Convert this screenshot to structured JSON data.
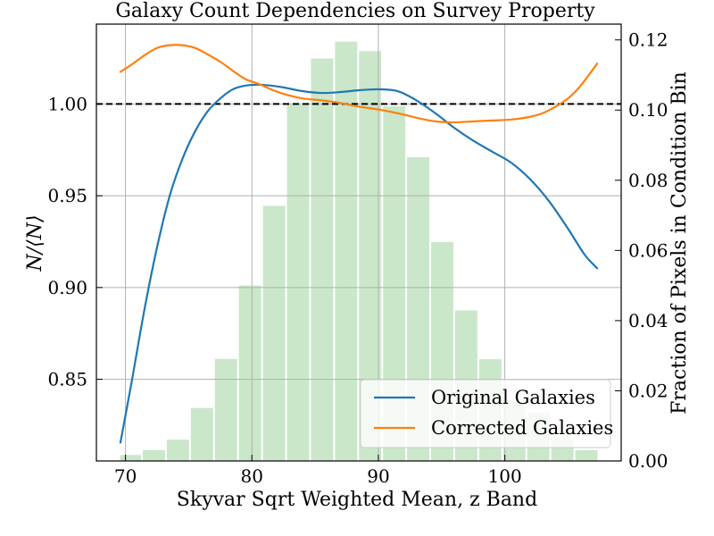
{
  "chart_data": {
    "type": "line",
    "title": "Galaxy Count Dependencies on Survey Property",
    "xlabel": "Skyvar Sqrt Weighted Mean, z Band",
    "ylabel": "N/⟨N⟩",
    "y2label": "Fraction of Pixels in Condition Bin",
    "xlim": [
      67.7,
      109.2
    ],
    "ylim": [
      0.8055,
      1.0435
    ],
    "y2lim": [
      0.0,
      0.1245
    ],
    "xticks": [
      "70",
      "80",
      "90",
      "100"
    ],
    "xtick_values": [
      70,
      80,
      90,
      100
    ],
    "yticks": [
      "0.85",
      "0.90",
      "0.95",
      "1.00"
    ],
    "ytick_values": [
      0.85,
      0.9,
      0.95,
      1.0
    ],
    "y2ticks": [
      "0.00",
      "0.02",
      "0.04",
      "0.06",
      "0.08",
      "0.10",
      "0.12"
    ],
    "y2tick_values": [
      0.0,
      0.02,
      0.04,
      0.06,
      0.08,
      0.1,
      0.12
    ],
    "grid": true,
    "reference_line": 1.0,
    "legend_position": "lower-right",
    "series": [
      {
        "name": "Original Galaxies",
        "color": "#1f77b4",
        "x": [
          69.6,
          70.5,
          71.5,
          72.5,
          73.5,
          74.5,
          75.5,
          76.5,
          77.5,
          78.5,
          79.5,
          80.5,
          81.5,
          82.5,
          84.0,
          85.5,
          87.0,
          88.5,
          90.0,
          91.5,
          93.0,
          94.5,
          96.0,
          97.5,
          99.0,
          100.5,
          102.0,
          103.5,
          105.0,
          106.3,
          107.3
        ],
        "values": [
          0.8155,
          0.849,
          0.888,
          0.922,
          0.95,
          0.97,
          0.985,
          0.996,
          1.003,
          1.008,
          1.01,
          1.0105,
          1.01,
          1.009,
          1.007,
          1.006,
          1.0065,
          1.0075,
          1.008,
          1.007,
          1.002,
          0.995,
          0.987,
          0.98,
          0.974,
          0.968,
          0.959,
          0.947,
          0.932,
          0.918,
          0.9105
        ]
      },
      {
        "name": "Corrected Galaxies",
        "color": "#ff7f0e",
        "x": [
          69.6,
          70.5,
          71.5,
          72.5,
          73.5,
          74.5,
          75.5,
          76.5,
          77.5,
          78.5,
          79.5,
          80.5,
          81.5,
          82.5,
          84.0,
          85.5,
          87.0,
          88.5,
          90.0,
          91.5,
          93.0,
          94.5,
          96.0,
          97.5,
          99.0,
          100.5,
          102.0,
          103.0,
          104.0,
          105.0,
          106.0,
          107.3
        ],
        "values": [
          1.0175,
          1.0215,
          1.0265,
          1.0305,
          1.032,
          1.032,
          1.0305,
          1.027,
          1.023,
          1.018,
          1.0135,
          1.011,
          1.008,
          1.0055,
          1.003,
          1.002,
          1.0005,
          0.9985,
          0.997,
          0.995,
          0.9925,
          0.9905,
          0.99,
          0.9905,
          0.991,
          0.9915,
          0.993,
          0.995,
          0.9985,
          1.003,
          1.01,
          1.022
        ]
      }
    ],
    "histogram": {
      "color": "#2ca02c",
      "opacity": 0.25,
      "bin_edges": [
        69.5,
        71.3,
        73.2,
        75.1,
        77.0,
        78.9,
        80.8,
        82.7,
        84.6,
        86.5,
        88.4,
        90.3,
        92.2,
        94.1,
        96.0,
        97.9,
        99.8,
        101.7,
        103.6,
        105.5,
        107.4
      ],
      "values": [
        0.0017,
        0.0031,
        0.0061,
        0.0151,
        0.0291,
        0.05,
        0.0727,
        0.1015,
        0.1147,
        0.1195,
        0.1168,
        0.1011,
        0.0866,
        0.0624,
        0.0429,
        0.029,
        0.0168,
        0.0138,
        0.0061,
        0.0031
      ]
    }
  }
}
